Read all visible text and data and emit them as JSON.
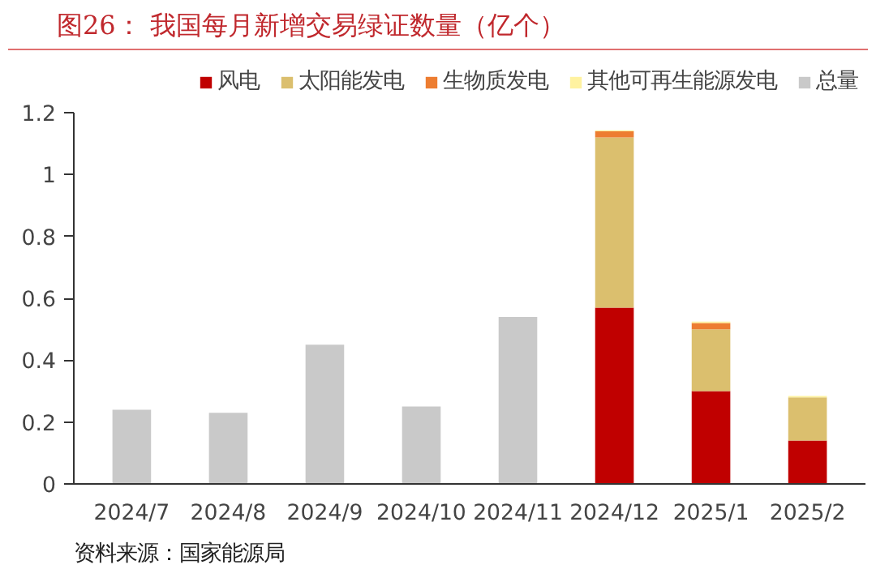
{
  "chart_data": {
    "type": "bar",
    "stacked": true,
    "title": "图26：  我国每月新增交易绿证数量（亿个）",
    "annotations": [
      "资料来源：国家能源局"
    ],
    "categories": [
      "2024/7",
      "2024/8",
      "2024/9",
      "2024/10",
      "2024/11",
      "2024/12",
      "2025/1",
      "2025/2"
    ],
    "series": [
      {
        "name": "风电",
        "color": "#c00000",
        "values": [
          null,
          null,
          null,
          null,
          null,
          0.57,
          0.3,
          0.14
        ]
      },
      {
        "name": "太阳能发电",
        "color": "#dbbf6e",
        "values": [
          null,
          null,
          null,
          null,
          null,
          0.55,
          0.2,
          0.14
        ]
      },
      {
        "name": "生物质发电",
        "color": "#ed7d31",
        "values": [
          null,
          null,
          null,
          null,
          null,
          0.02,
          0.02,
          null
        ]
      },
      {
        "name": "其他可再生能源发电",
        "color": "#fff2a0",
        "values": [
          null,
          null,
          null,
          null,
          null,
          0.003,
          0.005,
          0.004
        ]
      },
      {
        "name": "总量",
        "color": "#c9c9c9",
        "values": [
          0.24,
          0.23,
          0.45,
          0.25,
          0.54,
          null,
          null,
          null
        ]
      }
    ],
    "ylim": [
      0,
      1.2
    ],
    "yticks": [
      0,
      0.2,
      0.4,
      0.6,
      0.8,
      1,
      1.2
    ],
    "grid": false,
    "legend": "top"
  }
}
